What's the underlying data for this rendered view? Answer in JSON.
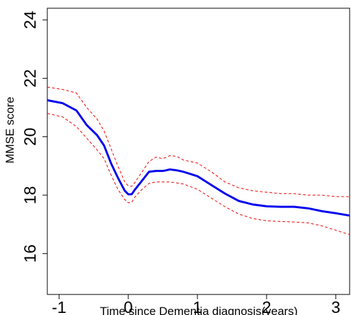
{
  "chart_data": {
    "type": "line",
    "title": "",
    "xlabel": "Time since Dementia diagnosis(years)",
    "ylabel": "MMSE score",
    "xlim": [
      -1.17,
      3.2
    ],
    "ylim": [
      14.6,
      24.4
    ],
    "xticks": [
      -1,
      0,
      1,
      2,
      3
    ],
    "yticks": [
      16,
      18,
      20,
      22,
      24
    ],
    "grid": false,
    "legend": "none",
    "series": [
      {
        "role": "estimate",
        "color": "#0000ee",
        "style": "solid",
        "x": [
          -1.17,
          -0.95,
          -0.75,
          -0.6,
          -0.45,
          -0.35,
          -0.25,
          -0.15,
          -0.05,
          0.0,
          0.05,
          0.1,
          0.2,
          0.3,
          0.4,
          0.5,
          0.55,
          0.6,
          0.7,
          0.8,
          1.0,
          1.2,
          1.4,
          1.6,
          1.8,
          2.0,
          2.2,
          2.4,
          2.6,
          2.8,
          3.0,
          3.2
        ],
        "y": [
          21.25,
          21.15,
          20.9,
          20.4,
          20.05,
          19.7,
          19.1,
          18.6,
          18.15,
          18.03,
          18.03,
          18.2,
          18.5,
          18.8,
          18.83,
          18.83,
          18.85,
          18.88,
          18.85,
          18.8,
          18.65,
          18.35,
          18.05,
          17.8,
          17.68,
          17.62,
          17.6,
          17.6,
          17.55,
          17.45,
          17.38,
          17.3
        ]
      },
      {
        "role": "upper-bound",
        "color": "#ee0000",
        "style": "dashed",
        "x": [
          -1.17,
          -0.95,
          -0.75,
          -0.6,
          -0.45,
          -0.35,
          -0.25,
          -0.15,
          -0.05,
          0.0,
          0.05,
          0.1,
          0.2,
          0.3,
          0.4,
          0.5,
          0.6,
          0.7,
          0.8,
          1.0,
          1.2,
          1.4,
          1.6,
          1.8,
          2.0,
          2.2,
          2.4,
          2.6,
          2.8,
          3.0,
          3.2
        ],
        "y": [
          21.7,
          21.62,
          21.5,
          21.0,
          20.6,
          20.2,
          19.6,
          19.0,
          18.45,
          18.32,
          18.3,
          18.45,
          18.8,
          19.15,
          19.3,
          19.25,
          19.35,
          19.33,
          19.2,
          19.1,
          18.8,
          18.45,
          18.25,
          18.15,
          18.1,
          18.05,
          18.05,
          18.0,
          18.0,
          17.95,
          17.95
        ]
      },
      {
        "role": "lower-bound",
        "color": "#ee0000",
        "style": "dashed",
        "x": [
          -1.17,
          -0.95,
          -0.75,
          -0.6,
          -0.45,
          -0.35,
          -0.25,
          -0.15,
          -0.05,
          0.0,
          0.05,
          0.1,
          0.2,
          0.3,
          0.4,
          0.5,
          0.6,
          0.7,
          0.8,
          1.0,
          1.2,
          1.4,
          1.6,
          1.8,
          2.0,
          2.2,
          2.4,
          2.6,
          2.8,
          3.0,
          3.2
        ],
        "y": [
          20.8,
          20.68,
          20.35,
          19.95,
          19.55,
          19.25,
          18.7,
          18.2,
          17.85,
          17.74,
          17.75,
          17.95,
          18.2,
          18.4,
          18.45,
          18.45,
          18.45,
          18.42,
          18.38,
          18.2,
          17.9,
          17.6,
          17.35,
          17.2,
          17.12,
          17.1,
          17.08,
          17.05,
          16.95,
          16.8,
          16.65
        ]
      }
    ]
  }
}
